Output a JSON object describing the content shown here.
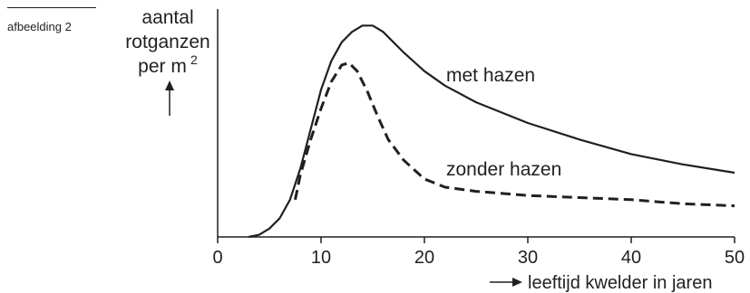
{
  "caption": "afbeelding 2",
  "chart_data": {
    "type": "line",
    "ylabel_lines": [
      "aantal",
      "rotganzen",
      "per m"
    ],
    "ylabel_superscript": "2",
    "xlabel": "leeftijd kwelder in jaren",
    "xlim": [
      0,
      50
    ],
    "xticks": [
      0,
      10,
      20,
      30,
      40,
      50
    ],
    "y_tick_labels": "none",
    "series": [
      {
        "name": "met hazen",
        "style": "solid",
        "x": [
          3,
          4,
          5,
          6,
          7,
          8,
          9,
          10,
          11,
          12,
          13,
          14,
          15,
          16,
          17,
          18,
          20,
          22,
          25,
          30,
          35,
          40,
          45,
          50
        ],
        "y": [
          0.0,
          0.01,
          0.04,
          0.09,
          0.18,
          0.33,
          0.52,
          0.71,
          0.85,
          0.94,
          0.99,
          1.02,
          1.02,
          0.99,
          0.94,
          0.89,
          0.8,
          0.73,
          0.65,
          0.55,
          0.47,
          0.4,
          0.35,
          0.31
        ]
      },
      {
        "name": "zonder hazen",
        "style": "dashed",
        "x": [
          7.5,
          8,
          9,
          10,
          11,
          12,
          12.7,
          13.5,
          14.5,
          15.5,
          16.5,
          18,
          20,
          22,
          25,
          30,
          35,
          40,
          45,
          50
        ],
        "y": [
          0.18,
          0.3,
          0.47,
          0.62,
          0.75,
          0.83,
          0.84,
          0.8,
          0.7,
          0.58,
          0.47,
          0.37,
          0.28,
          0.24,
          0.22,
          0.2,
          0.19,
          0.18,
          0.16,
          0.15
        ]
      }
    ],
    "series_labels": [
      "met hazen",
      "zonder hazen"
    ],
    "colors": {
      "ink": "#231f20",
      "background": "#ffffff"
    }
  }
}
